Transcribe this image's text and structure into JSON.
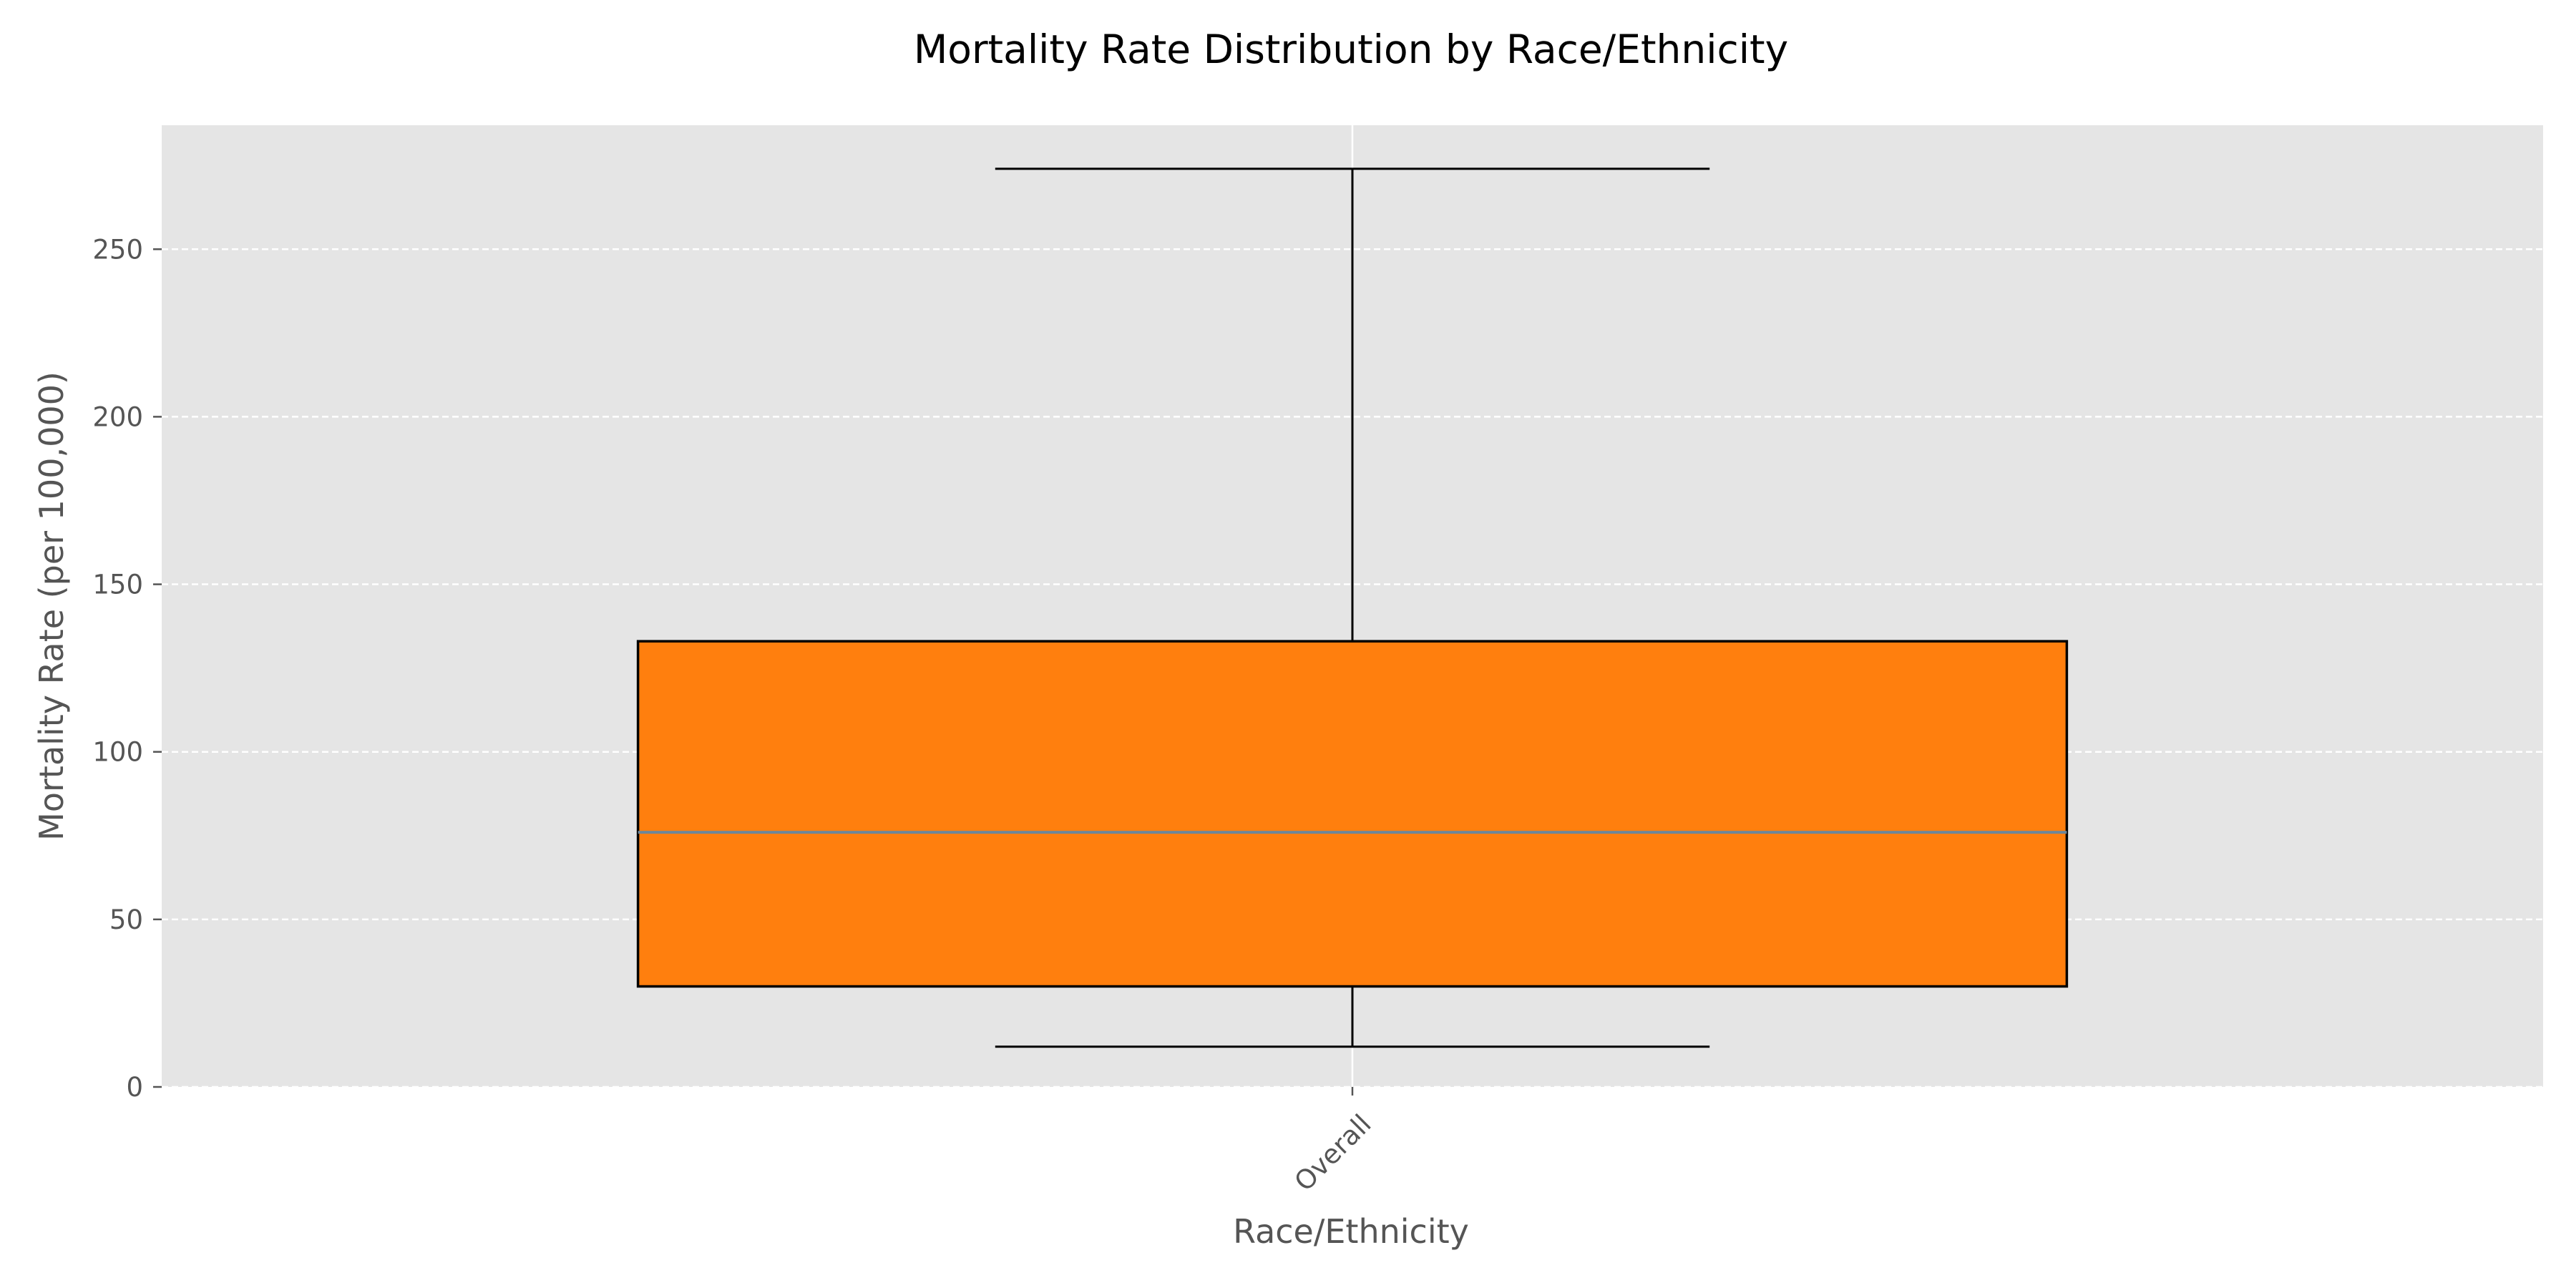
{
  "chart_data": {
    "type": "box",
    "title": "Mortality Rate Distribution by Race/Ethnicity",
    "xlabel": "Race/Ethnicity",
    "ylabel": "Mortality Rate (per 100,000)",
    "categories": [
      "Overall"
    ],
    "boxes": [
      {
        "category": "Overall",
        "whisker_low": 12,
        "q1": 30,
        "median": 76,
        "q3": 133,
        "whisker_high": 274
      }
    ],
    "ylim": [
      0,
      287
    ],
    "yticks": [
      0,
      50,
      100,
      150,
      200,
      250
    ],
    "grid": true,
    "colors": {
      "box_fill": "#ff7f0e",
      "median_line": "#6e8799",
      "plot_background": "#e5e5e5",
      "grid": "#ffffff"
    }
  }
}
